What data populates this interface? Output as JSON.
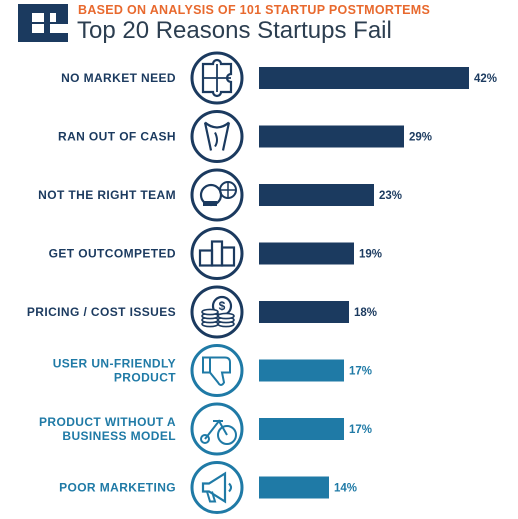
{
  "header": {
    "subtitle": "BASED ON ANALYSIS OF 101 STARTUP POSTMORTEMS",
    "title": "Top 20 Reasons Startups Fail"
  },
  "colors": {
    "dark": "#1b3a5f",
    "light": "#1f7aa6",
    "accent": "#e8692e",
    "title": "#2c3e50"
  },
  "chart_data": {
    "type": "bar",
    "orientation": "horizontal",
    "title": "Top 20 Reasons Startups Fail",
    "subtitle": "BASED ON ANALYSIS OF 101 STARTUP POSTMORTEMS",
    "xlim": [
      0,
      42
    ],
    "categories": [
      [
        "NO MARKET NEED"
      ],
      [
        "RAN OUT OF CASH"
      ],
      [
        "NOT THE RIGHT TEAM"
      ],
      [
        "GET OUTCOMPETED"
      ],
      [
        "PRICING / COST ISSUES"
      ],
      [
        "USER UN-FRIENDLY",
        "PRODUCT"
      ],
      [
        "PRODUCT WITHOUT A",
        "BUSINESS MODEL"
      ],
      [
        "POOR MARKETING"
      ]
    ],
    "values": [
      42,
      29,
      23,
      19,
      18,
      17,
      17,
      14
    ],
    "value_labels": [
      "42%",
      "29%",
      "23%",
      "19%",
      "18%",
      "17%",
      "17%",
      "14%"
    ],
    "bar_colors": [
      "dark",
      "dark",
      "dark",
      "dark",
      "dark",
      "light",
      "light",
      "light"
    ],
    "icons": [
      "puzzle-icon",
      "empty-pockets-icon",
      "team-gear-icon",
      "podium-icon",
      "coins-icon",
      "thumbs-down-icon",
      "bike-icon",
      "megaphone-icon"
    ]
  }
}
